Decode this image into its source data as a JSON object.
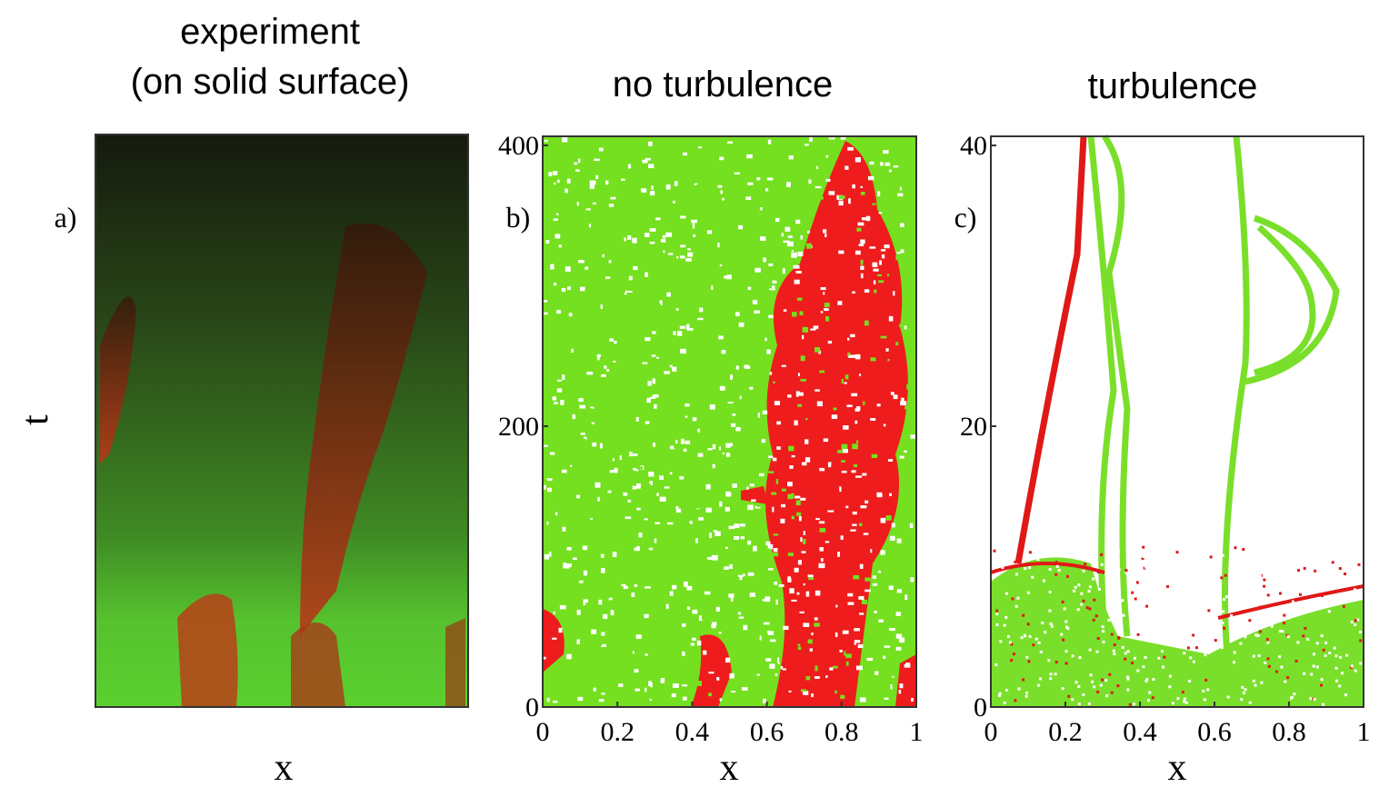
{
  "panels": [
    {
      "title": [
        "experiment",
        "(on solid surface)"
      ],
      "label": "a)",
      "xlabel": "x",
      "ylabel": "t"
    },
    {
      "title": "no turbulence",
      "label": "b)",
      "xlabel": "x",
      "xlim": [
        0,
        1
      ],
      "xticks": [
        0,
        0.2,
        0.4,
        0.6,
        0.8,
        1
      ],
      "ylim": [
        0,
        400
      ],
      "yticks": [
        0,
        200,
        400
      ]
    },
    {
      "title": "turbulence",
      "label": "c)",
      "xlabel": "x",
      "xlim": [
        0,
        1
      ],
      "xticks": [
        0,
        0.2,
        0.4,
        0.6,
        0.8,
        1
      ],
      "ylim": [
        0,
        40
      ],
      "yticks": [
        0,
        20,
        40
      ]
    }
  ]
}
